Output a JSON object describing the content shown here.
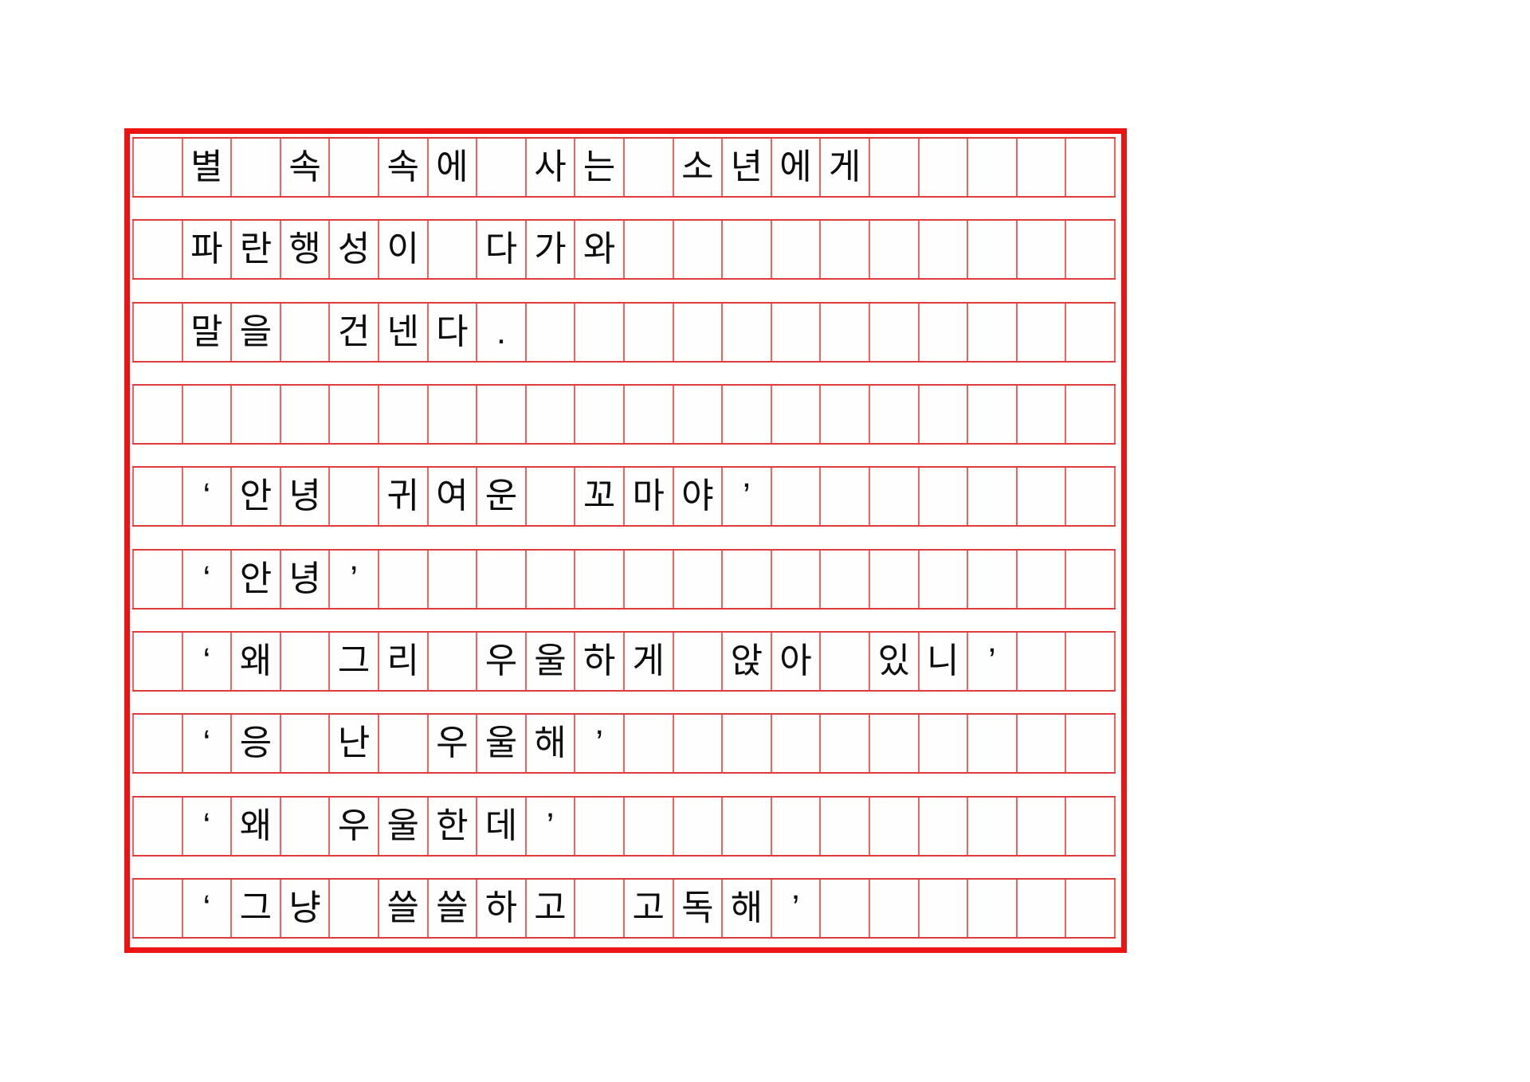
{
  "sheet": {
    "type": "korean-manuscript-grid",
    "columns": 20,
    "text_rows": 10,
    "lines": [
      "별 속 속에 사는 소년에게",
      "파란행성이 다가와",
      "말을 건넨다 .",
      "",
      "‘ 안녕 귀여운 꼬마야 ’",
      "‘ 안녕 ’",
      "‘ 왜 그리 우울하게 앉아 있니 ’",
      "‘ 응 난 우울해 ’",
      "‘ 왜 우울한데 ’",
      "‘ 그냥 쓸쓸하고 고독해 ’"
    ],
    "rows": [
      [
        "",
        "별",
        "",
        "속",
        "",
        "속",
        "에",
        "",
        "사",
        "는",
        "",
        "소",
        "년",
        "에",
        "게",
        "",
        "",
        "",
        "",
        ""
      ],
      [
        "",
        "파",
        "란",
        "행",
        "성",
        "이",
        "",
        "다",
        "가",
        "와",
        "",
        "",
        "",
        "",
        "",
        "",
        "",
        "",
        "",
        ""
      ],
      [
        "",
        "말",
        "을",
        "",
        "건",
        "넨",
        "다",
        ".",
        "",
        "",
        "",
        "",
        "",
        "",
        "",
        "",
        "",
        "",
        "",
        ""
      ],
      [
        "",
        "",
        "",
        "",
        "",
        "",
        "",
        "",
        "",
        "",
        "",
        "",
        "",
        "",
        "",
        "",
        "",
        "",
        "",
        ""
      ],
      [
        "",
        "‘",
        "안",
        "녕",
        "",
        "귀",
        "여",
        "운",
        "",
        "꼬",
        "마",
        "야",
        "’",
        "",
        "",
        "",
        "",
        "",
        "",
        ""
      ],
      [
        "",
        "‘",
        "안",
        "녕",
        "’",
        "",
        "",
        "",
        "",
        "",
        "",
        "",
        "",
        "",
        "",
        "",
        "",
        "",
        "",
        ""
      ],
      [
        "",
        "‘",
        "왜",
        "",
        "그",
        "리",
        "",
        "우",
        "울",
        "하",
        "게",
        "",
        "앉",
        "아",
        "",
        "있",
        "니",
        "’",
        "",
        ""
      ],
      [
        "",
        "‘",
        "응",
        "",
        "난",
        "",
        "우",
        "울",
        "해",
        "’",
        "",
        "",
        "",
        "",
        "",
        "",
        "",
        "",
        "",
        ""
      ],
      [
        "",
        "‘",
        "왜",
        "",
        "우",
        "울",
        "한",
        "데",
        "’",
        "",
        "",
        "",
        "",
        "",
        "",
        "",
        "",
        "",
        "",
        ""
      ],
      [
        "",
        "‘",
        "그",
        "냥",
        "",
        "쓸",
        "쓸",
        "하",
        "고",
        "",
        "고",
        "독",
        "해",
        "’",
        "",
        "",
        "",
        "",
        "",
        ""
      ]
    ]
  },
  "colors": {
    "outer_border": "#ec1313",
    "row_line": "#df3b3b",
    "cell_line": "#ee6262",
    "text": "#0d0d0d",
    "background": "#ffffff"
  }
}
